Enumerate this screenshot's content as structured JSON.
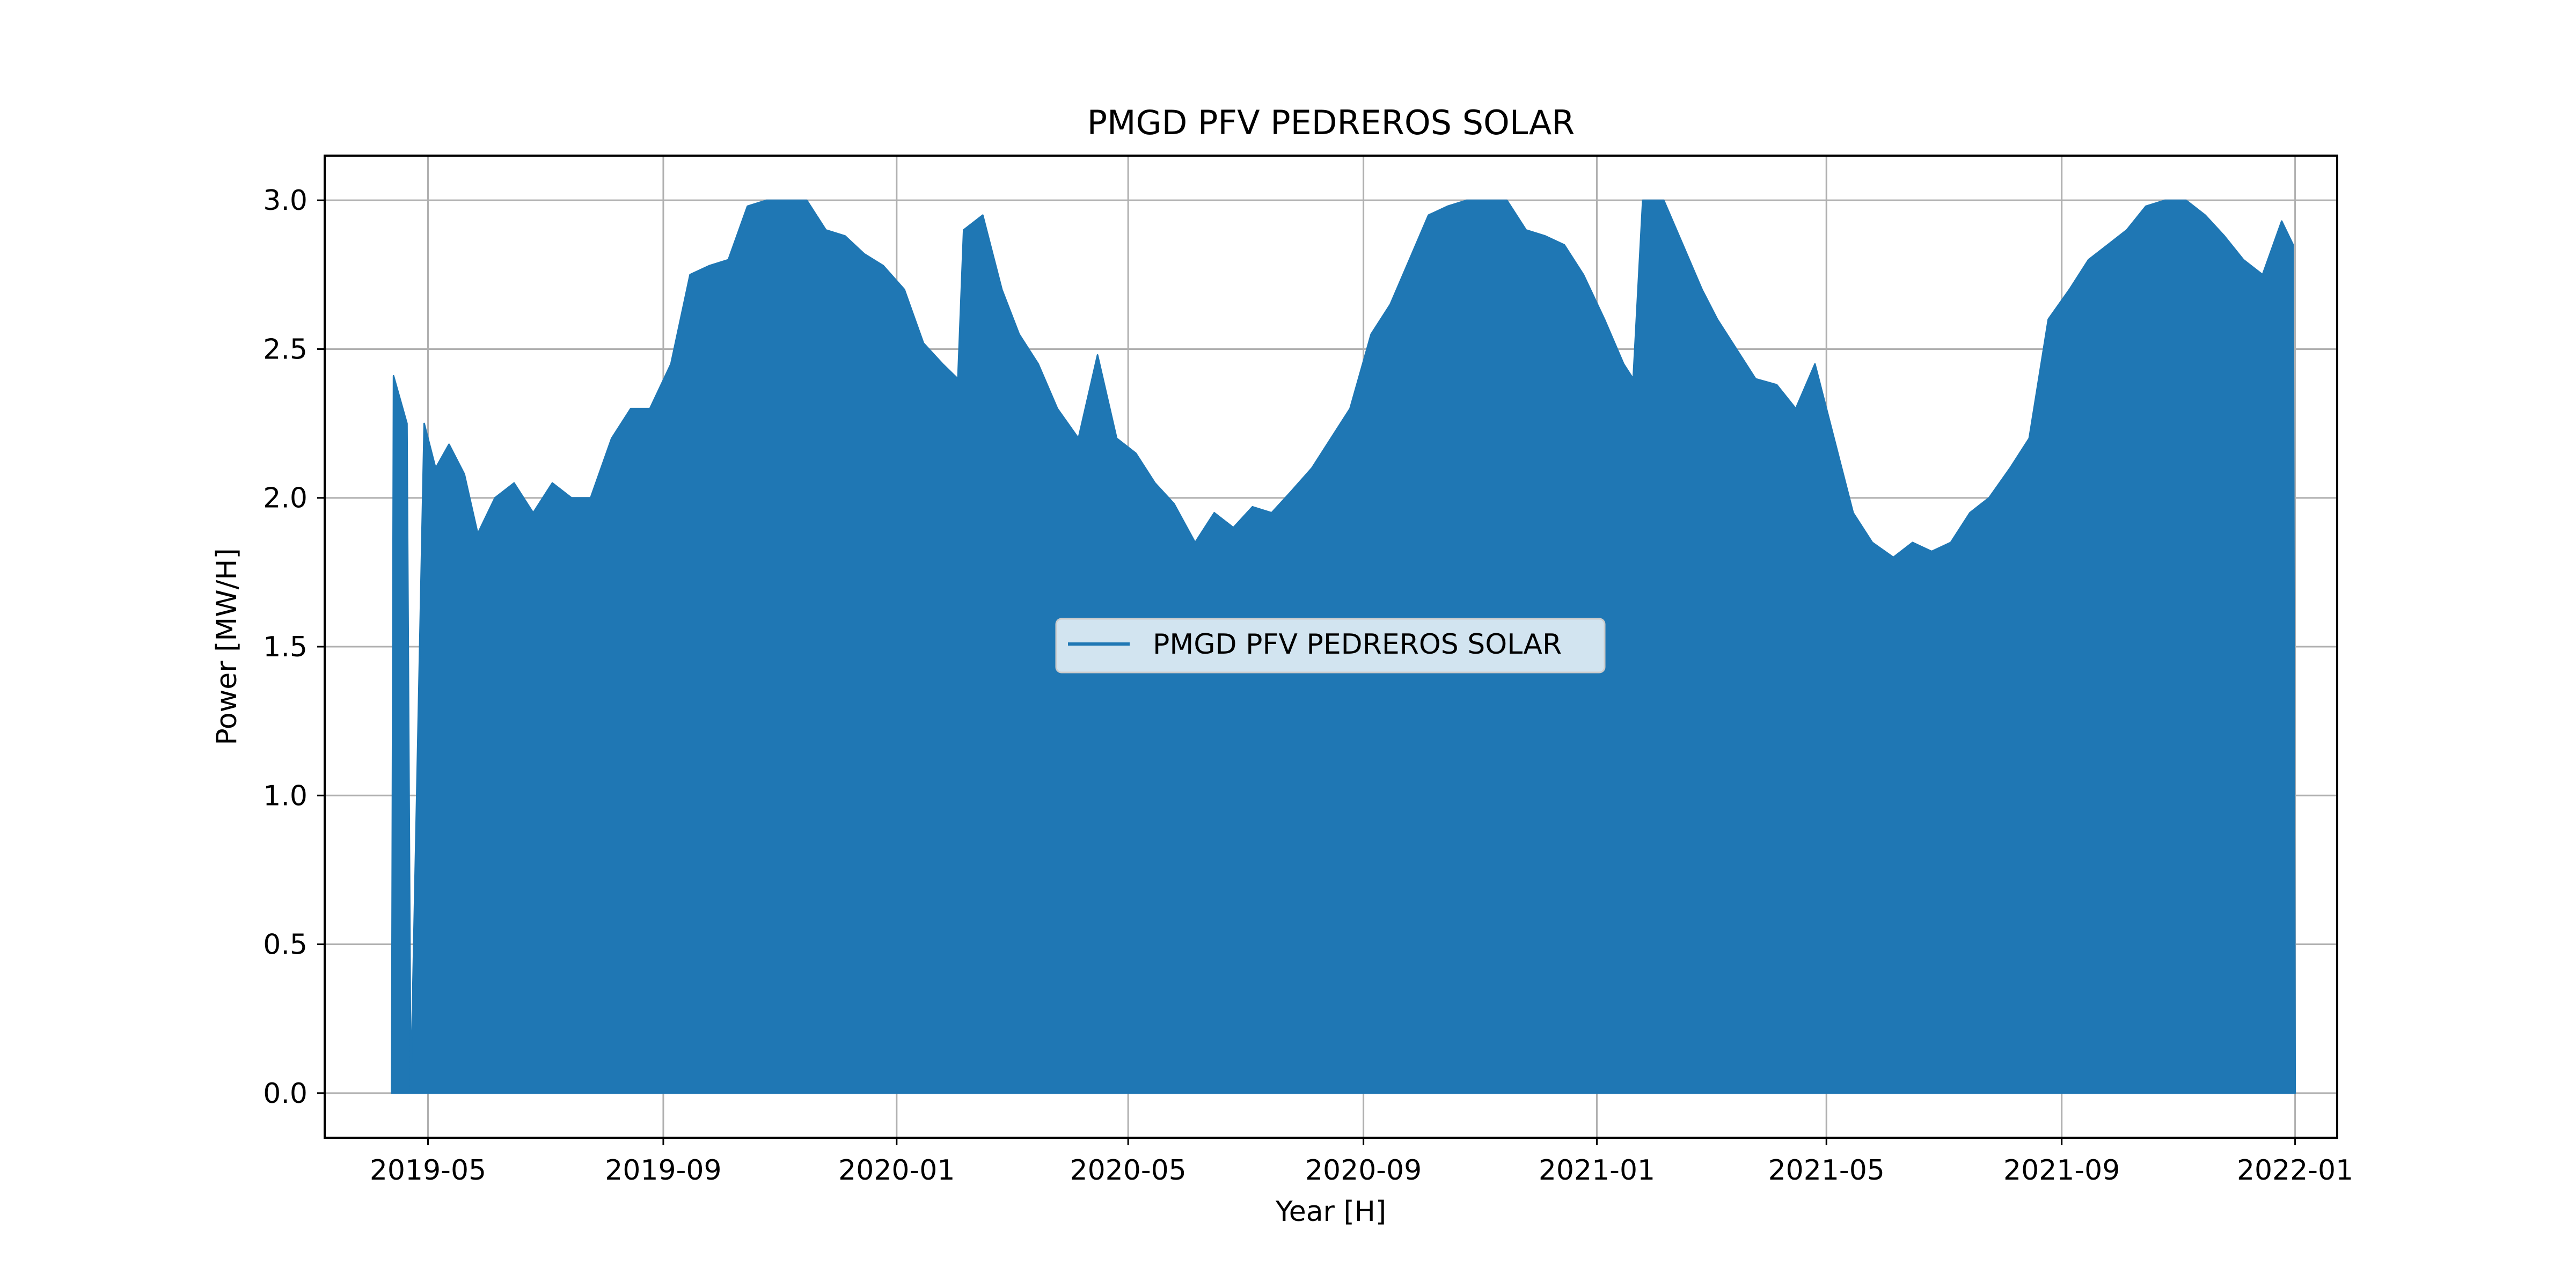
{
  "chart_data": {
    "type": "area",
    "title": "PMGD PFV PEDREROS SOLAR",
    "xlabel": "Year [H]",
    "ylabel": "Power [MW/H]",
    "x_type": "date",
    "xlim": [
      "2019-03-08",
      "2022-01-23"
    ],
    "ylim": [
      -0.15,
      3.15
    ],
    "x_ticks": [
      "2019-05",
      "2019-09",
      "2020-01",
      "2020-05",
      "2020-09",
      "2021-01",
      "2021-05",
      "2021-09",
      "2022-01"
    ],
    "y_ticks": [
      "0.0",
      "0.5",
      "1.0",
      "1.5",
      "2.0",
      "2.5",
      "3.0"
    ],
    "grid": true,
    "legend": {
      "position": "center",
      "entries": [
        "PMGD PFV PEDREROS SOLAR"
      ]
    },
    "series": [
      {
        "name": "PMGD PFV PEDREROS SOLAR",
        "color": "#1f77b4",
        "daily_peak_envelope": {
          "x": [
            "2019-04-12",
            "2019-04-13",
            "2019-04-20",
            "2019-04-22",
            "2019-04-29",
            "2019-05-05",
            "2019-05-12",
            "2019-05-20",
            "2019-05-27",
            "2019-06-05",
            "2019-06-15",
            "2019-06-25",
            "2019-07-05",
            "2019-07-15",
            "2019-07-25",
            "2019-08-05",
            "2019-08-15",
            "2019-08-25",
            "2019-09-05",
            "2019-09-15",
            "2019-09-25",
            "2019-10-05",
            "2019-10-15",
            "2019-10-25",
            "2019-11-05",
            "2019-11-15",
            "2019-11-25",
            "2019-12-05",
            "2019-12-15",
            "2019-12-25",
            "2020-01-05",
            "2020-01-15",
            "2020-01-25",
            "2020-02-02",
            "2020-02-05",
            "2020-02-15",
            "2020-02-25",
            "2020-03-05",
            "2020-03-15",
            "2020-03-25",
            "2020-04-05",
            "2020-04-15",
            "2020-04-25",
            "2020-05-05",
            "2020-05-15",
            "2020-05-25",
            "2020-06-05",
            "2020-06-15",
            "2020-06-25",
            "2020-07-05",
            "2020-07-15",
            "2020-07-25",
            "2020-08-05",
            "2020-08-15",
            "2020-08-25",
            "2020-09-05",
            "2020-09-15",
            "2020-09-25",
            "2020-10-05",
            "2020-10-15",
            "2020-10-25",
            "2020-11-05",
            "2020-11-15",
            "2020-11-25",
            "2020-12-05",
            "2020-12-15",
            "2020-12-25",
            "2021-01-05",
            "2021-01-15",
            "2021-01-20",
            "2021-01-25",
            "2021-02-05",
            "2021-02-15",
            "2021-02-25",
            "2021-03-05",
            "2021-03-15",
            "2021-03-25",
            "2021-04-05",
            "2021-04-15",
            "2021-04-25",
            "2021-05-05",
            "2021-05-15",
            "2021-05-25",
            "2021-06-05",
            "2021-06-15",
            "2021-06-25",
            "2021-07-05",
            "2021-07-15",
            "2021-07-25",
            "2021-08-05",
            "2021-08-15",
            "2021-08-25",
            "2021-09-05",
            "2021-09-15",
            "2021-09-25",
            "2021-10-05",
            "2021-10-15",
            "2021-10-25",
            "2021-11-05",
            "2021-11-15",
            "2021-11-25",
            "2021-12-05",
            "2021-12-15",
            "2021-12-25",
            "2021-12-31",
            "2022-01-01"
          ],
          "y": [
            0.0,
            2.41,
            2.25,
            0.0,
            2.25,
            2.1,
            2.18,
            2.08,
            1.88,
            2.0,
            2.05,
            1.95,
            2.05,
            2.0,
            2.0,
            2.2,
            2.3,
            2.3,
            2.45,
            2.75,
            2.78,
            2.8,
            2.98,
            3.0,
            3.0,
            3.0,
            2.9,
            2.88,
            2.82,
            2.78,
            2.7,
            2.52,
            2.45,
            2.4,
            2.9,
            2.95,
            2.7,
            2.55,
            2.45,
            2.3,
            2.2,
            2.48,
            2.2,
            2.15,
            2.05,
            1.98,
            1.85,
            1.95,
            1.9,
            1.97,
            1.95,
            2.02,
            2.1,
            2.2,
            2.3,
            2.55,
            2.65,
            2.8,
            2.95,
            2.98,
            3.0,
            3.0,
            3.0,
            2.9,
            2.88,
            2.85,
            2.75,
            2.6,
            2.45,
            2.4,
            3.0,
            3.0,
            2.85,
            2.7,
            2.6,
            2.5,
            2.4,
            2.38,
            2.3,
            2.45,
            2.2,
            1.95,
            1.85,
            1.8,
            1.85,
            1.82,
            1.85,
            1.95,
            2.0,
            2.1,
            2.2,
            2.6,
            2.7,
            2.8,
            2.85,
            2.9,
            2.98,
            3.0,
            3.0,
            2.95,
            2.88,
            2.8,
            2.75,
            2.93,
            2.85,
            0.0
          ]
        },
        "daily_minimum": 0.0
      }
    ]
  }
}
